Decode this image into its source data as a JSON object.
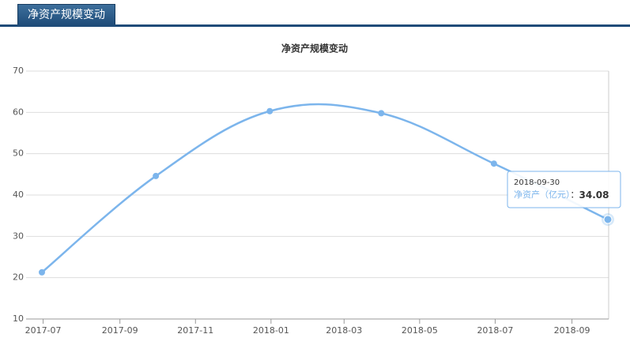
{
  "header": {
    "tab": "净资产规模变动"
  },
  "chart_data": {
    "type": "line",
    "title": "净资产规模变动",
    "x": [
      "2017-06-30",
      "2017-09-30",
      "2017-12-31",
      "2018-03-31",
      "2018-06-30",
      "2018-09-30"
    ],
    "series": [
      {
        "name": "净资产（亿元）",
        "color": "#7cb5ec",
        "values": [
          21.3,
          44.6,
          60.3,
          59.8,
          47.6,
          34.08
        ]
      }
    ],
    "xlim": [
      "2017-06-30",
      "2018-09-30"
    ],
    "xticks": [
      "2017-07",
      "2017-09",
      "2017-11",
      "2018-01",
      "2018-03",
      "2018-05",
      "2018-07",
      "2018-09"
    ],
    "ylim": [
      10,
      70
    ],
    "yticks": [
      10,
      20,
      30,
      40,
      50,
      60,
      70
    ],
    "grid": true,
    "tooltip_separator": "："
  }
}
